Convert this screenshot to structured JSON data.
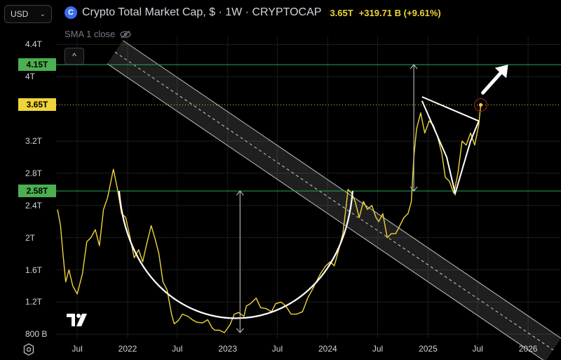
{
  "header": {
    "currency": "USD",
    "coin_icon": "coin-icon",
    "title": "Crypto Total Market Cap, $ · 1W · CRYPTOCAP",
    "last": "3.65T",
    "change": "+319.71 B (+9.61%)",
    "indicator": "SMA 1 close"
  },
  "tags": {
    "resistance": "4.15T",
    "current": "3.65T",
    "support": "2.58T"
  },
  "colors": {
    "line": "#f0d43a",
    "green": "#26a65b",
    "tag_green": "#4caf50",
    "tag_yellow": "#f0d43a",
    "grid": "#1c1c1c",
    "channel": "#8a8a8a"
  },
  "chart_data": {
    "type": "line",
    "title": "Crypto Total Market Cap, $ · 1W · CRYPTOCAP",
    "xlabel": "",
    "ylabel": "",
    "x_ticks": [
      "Jul",
      "2022",
      "Jul",
      "2023",
      "Jul",
      "2024",
      "Jul",
      "2025",
      "Jul",
      "2026"
    ],
    "x_tick_dates": [
      "2021-07-01",
      "2022-01-01",
      "2022-07-01",
      "2023-01-01",
      "2023-07-01",
      "2024-01-01",
      "2024-07-01",
      "2025-01-01",
      "2025-07-01",
      "2026-01-01"
    ],
    "y_ticks": [
      "800 B",
      "1.2T",
      "1.6T",
      "2T",
      "2.4T",
      "2.8T",
      "3.2T",
      "4T",
      "4.4T"
    ],
    "y_tick_values": [
      0.8,
      1.2,
      1.6,
      2.0,
      2.4,
      2.8,
      3.2,
      4.0,
      4.4
    ],
    "ylim": [
      0.75,
      4.5
    ],
    "xlim": [
      "2021-04-15",
      "2026-05-01"
    ],
    "grid": true,
    "horizontal_levels": [
      4.15,
      2.58
    ],
    "current_level": 3.65,
    "series": [
      {
        "x": [
          "2021-04-20",
          "2021-05-01",
          "2021-05-10",
          "2021-05-20",
          "2021-06-01",
          "2021-06-15",
          "2021-07-01",
          "2021-07-20",
          "2021-08-05",
          "2021-08-20",
          "2021-09-05",
          "2021-09-20",
          "2021-10-05",
          "2021-10-20",
          "2021-11-01",
          "2021-11-10",
          "2021-11-25",
          "2021-12-10",
          "2021-12-25",
          "2022-01-10",
          "2022-01-25",
          "2022-02-10",
          "2022-02-25",
          "2022-03-10",
          "2022-03-28",
          "2022-04-10",
          "2022-04-25",
          "2022-05-10",
          "2022-05-25",
          "2022-06-10",
          "2022-06-20",
          "2022-07-05",
          "2022-07-20",
          "2022-08-10",
          "2022-08-25",
          "2022-09-10",
          "2022-10-01",
          "2022-10-20",
          "2022-11-05",
          "2022-11-15",
          "2022-12-01",
          "2022-12-20",
          "2023-01-10",
          "2023-01-25",
          "2023-02-10",
          "2023-03-01",
          "2023-03-10",
          "2023-03-25",
          "2023-04-15",
          "2023-05-01",
          "2023-05-20",
          "2023-06-10",
          "2023-06-25",
          "2023-07-15",
          "2023-08-01",
          "2023-08-20",
          "2023-09-10",
          "2023-10-01",
          "2023-10-20",
          "2023-11-05",
          "2023-11-20",
          "2023-12-05",
          "2023-12-25",
          "2024-01-10",
          "2024-01-25",
          "2024-02-10",
          "2024-02-25",
          "2024-03-05",
          "2024-03-15",
          "2024-03-28",
          "2024-04-10",
          "2024-04-25",
          "2024-05-10",
          "2024-05-25",
          "2024-06-10",
          "2024-06-25",
          "2024-07-05",
          "2024-07-20",
          "2024-08-05",
          "2024-08-20",
          "2024-09-05",
          "2024-09-20",
          "2024-10-05",
          "2024-10-20",
          "2024-11-01",
          "2024-11-10",
          "2024-11-20",
          "2024-12-05",
          "2024-12-20",
          "2025-01-05",
          "2025-01-20",
          "2025-02-05",
          "2025-02-20",
          "2025-03-05",
          "2025-03-20",
          "2025-04-05",
          "2025-04-20",
          "2025-05-05",
          "2025-05-20",
          "2025-06-05",
          "2025-06-20",
          "2025-07-05",
          "2025-07-12"
        ],
        "values": [
          2.35,
          2.15,
          1.8,
          1.45,
          1.6,
          1.4,
          1.3,
          1.55,
          1.95,
          2.0,
          2.1,
          1.9,
          2.35,
          2.5,
          2.7,
          2.85,
          2.6,
          2.3,
          2.25,
          2.0,
          1.75,
          1.85,
          1.7,
          1.9,
          2.15,
          2.0,
          1.8,
          1.45,
          1.35,
          1.05,
          0.93,
          0.97,
          1.05,
          1.02,
          0.98,
          0.95,
          0.94,
          0.98,
          0.88,
          0.85,
          0.85,
          0.82,
          0.92,
          1.05,
          1.07,
          1.02,
          1.15,
          1.18,
          1.25,
          1.13,
          1.12,
          1.08,
          1.18,
          1.2,
          1.15,
          1.05,
          1.05,
          1.08,
          1.25,
          1.35,
          1.45,
          1.55,
          1.65,
          1.7,
          1.65,
          1.85,
          2.05,
          2.3,
          2.6,
          2.55,
          2.45,
          2.25,
          2.45,
          2.35,
          2.4,
          2.25,
          2.2,
          2.3,
          2.0,
          2.05,
          2.05,
          2.15,
          2.25,
          2.3,
          2.45,
          3.0,
          3.35,
          3.55,
          3.3,
          3.45,
          3.4,
          3.25,
          3.05,
          2.75,
          2.7,
          2.55,
          2.8,
          3.2,
          3.15,
          3.3,
          3.15,
          3.4,
          3.65
        ]
      }
    ],
    "annotations": [
      {
        "type": "cup-arc",
        "x_range": [
          "2021-12-01",
          "2024-04-01"
        ],
        "bottom": 0.82
      },
      {
        "type": "wedge-upper",
        "x": [
          "2024-12-10",
          "2025-07-05"
        ],
        "y": [
          3.75,
          3.45
        ]
      },
      {
        "type": "wedge-lower",
        "x": [
          "2024-12-10",
          "2025-03-10",
          "2025-04-10",
          "2025-06-05",
          "2025-07-05"
        ],
        "y": [
          3.7,
          3.0,
          2.55,
          3.2,
          3.45
        ]
      },
      {
        "type": "measure-arrow",
        "x": "2023-02-15",
        "y_from": 0.82,
        "y_to": 2.58
      },
      {
        "type": "measure-arrow",
        "x": "2024-11-10",
        "y_from": 2.58,
        "y_to": 4.15
      },
      {
        "type": "breakout-arrow",
        "from": [
          "2025-07-20",
          3.8
        ],
        "to": [
          "2025-10-20",
          4.15
        ]
      },
      {
        "type": "descending-channel",
        "from": [
          "2021-12-15",
          4.45
        ],
        "to": [
          "2026-05-01",
          0.75
        ]
      }
    ]
  }
}
